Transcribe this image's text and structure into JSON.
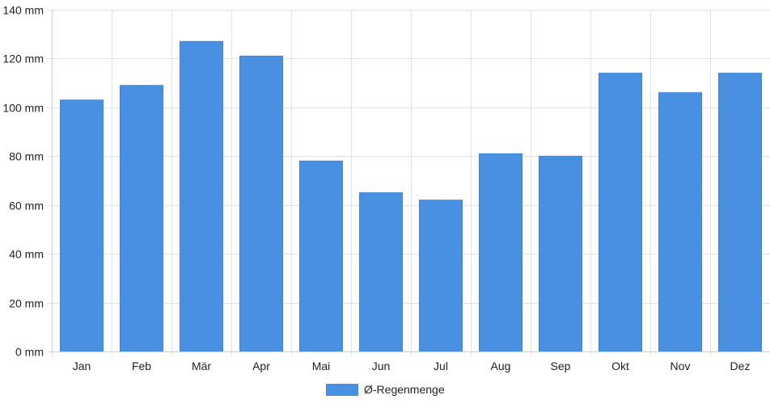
{
  "chart_data": {
    "type": "bar",
    "categories": [
      "Jan",
      "Feb",
      "Mär",
      "Apr",
      "Mai",
      "Jun",
      "Jul",
      "Aug",
      "Sep",
      "Okt",
      "Nov",
      "Dez"
    ],
    "series": [
      {
        "name": "Ø-Regenmenge",
        "color": "#4a90e2",
        "values": [
          103,
          109,
          127,
          121,
          78,
          65,
          62,
          81,
          80,
          114,
          106,
          114
        ]
      }
    ],
    "yunit": "mm",
    "ylim": [
      0,
      140
    ],
    "yticks": [
      0,
      20,
      40,
      60,
      80,
      100,
      120,
      140
    ],
    "ytick_labels": [
      "0 mm",
      "20 mm",
      "40 mm",
      "60 mm",
      "80 mm",
      "100 mm",
      "120 mm",
      "140 mm"
    ],
    "grid": true,
    "legend_position": "bottom-center"
  },
  "legend": {
    "label": "Ø-Regenmenge"
  }
}
